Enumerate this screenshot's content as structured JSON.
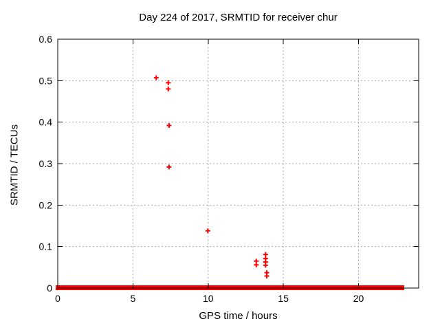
{
  "chart_data": {
    "type": "scatter",
    "title": "Day 224 of 2017, SRMTID for receiver chur",
    "xlabel": "GPS time / hours",
    "ylabel": "SRMTID / TECUs",
    "xlim": [
      0,
      24
    ],
    "ylim": [
      0,
      0.6
    ],
    "grid": true,
    "legend": "none",
    "marker": "plus",
    "marker_size": 7,
    "xticks": [
      {
        "v": 0,
        "label": "0"
      },
      {
        "v": 5,
        "label": "5"
      },
      {
        "v": 10,
        "label": "10"
      },
      {
        "v": 15,
        "label": "15"
      },
      {
        "v": 20,
        "label": "20"
      }
    ],
    "yticks": [
      {
        "v": 0,
        "label": "0"
      },
      {
        "v": 0.1,
        "label": "0.1"
      },
      {
        "v": 0.2,
        "label": "0.2"
      },
      {
        "v": 0.3,
        "label": "0.3"
      },
      {
        "v": 0.4,
        "label": "0.4"
      },
      {
        "v": 0.5,
        "label": "0.5"
      },
      {
        "v": 0.6,
        "label": "0.6"
      }
    ],
    "points": [
      [
        6.55,
        0.507
      ],
      [
        7.35,
        0.495
      ],
      [
        7.35,
        0.48
      ],
      [
        7.4,
        0.392
      ],
      [
        7.4,
        0.292
      ],
      [
        9.98,
        0.138
      ],
      [
        13.2,
        0.065
      ],
      [
        13.2,
        0.056
      ],
      [
        13.82,
        0.081
      ],
      [
        13.82,
        0.071
      ],
      [
        13.82,
        0.063
      ],
      [
        13.82,
        0.055
      ],
      [
        13.9,
        0.037
      ],
      [
        13.9,
        0.029
      ]
    ],
    "zero_value_runs": [
      [
        0,
        7.3
      ],
      [
        7.45,
        22.5
      ],
      [
        22.63,
        22.9
      ]
    ],
    "colors": {
      "series": "#ff0000",
      "grid": "#a8a8a8",
      "axis": "#000000",
      "text": "#000000",
      "background": "#ffffff"
    }
  }
}
